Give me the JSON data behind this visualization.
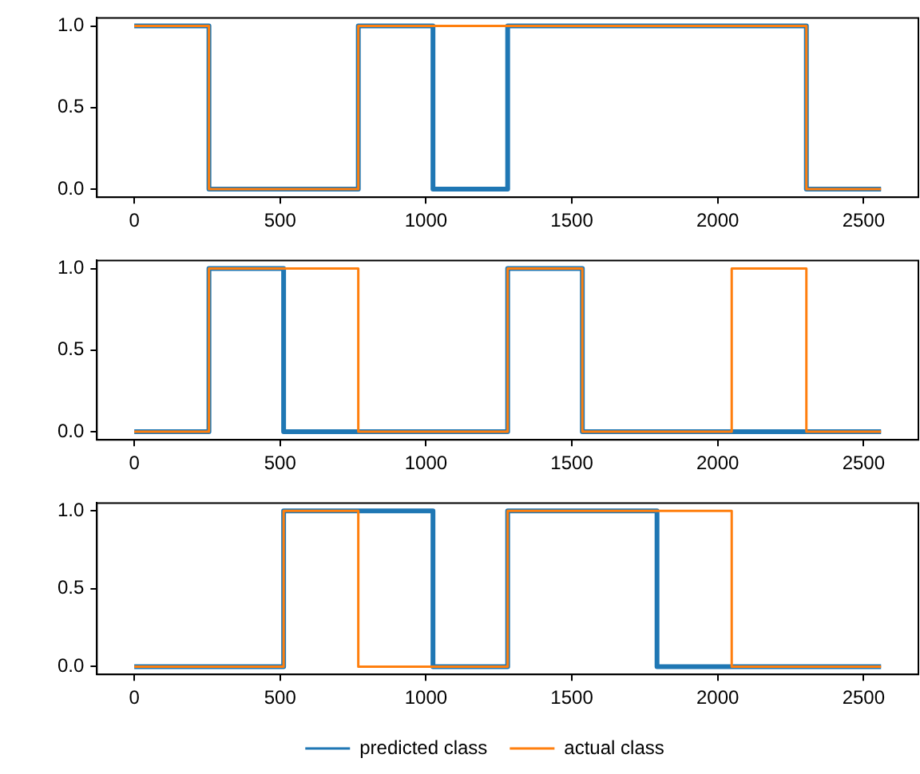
{
  "chart_data": [
    {
      "type": "step",
      "xlim": [
        -128,
        2688
      ],
      "ylim": [
        -0.05,
        1.05
      ],
      "xticks": [
        0,
        500,
        1000,
        1500,
        2000,
        2500
      ],
      "yticks": [
        {
          "value": 0,
          "label": "0.0"
        },
        {
          "value": 0.5,
          "label": "0.5"
        },
        {
          "value": 1,
          "label": "1.0"
        }
      ],
      "grid": false,
      "series": [
        {
          "color": "#1f77b4",
          "x": [
            0,
            256,
            768,
            1024,
            1280,
            2304,
            2560
          ],
          "values": [
            1,
            0,
            1,
            0,
            1,
            0,
            0
          ]
        },
        {
          "color": "#ff7f0e",
          "x": [
            0,
            256,
            768,
            2304,
            2560
          ],
          "values": [
            1,
            0,
            1,
            0,
            0
          ]
        }
      ]
    },
    {
      "type": "step",
      "xlim": [
        -128,
        2688
      ],
      "ylim": [
        -0.05,
        1.05
      ],
      "xticks": [
        0,
        500,
        1000,
        1500,
        2000,
        2500
      ],
      "yticks": [
        {
          "value": 0,
          "label": "0.0"
        },
        {
          "value": 0.5,
          "label": "0.5"
        },
        {
          "value": 1,
          "label": "1.0"
        }
      ],
      "grid": false,
      "series": [
        {
          "color": "#1f77b4",
          "x": [
            0,
            256,
            512,
            1280,
            1536,
            2560
          ],
          "values": [
            0,
            1,
            0,
            1,
            0,
            0
          ]
        },
        {
          "color": "#ff7f0e",
          "x": [
            0,
            256,
            768,
            1280,
            1536,
            2048,
            2304,
            2560
          ],
          "values": [
            0,
            1,
            0,
            1,
            0,
            1,
            0,
            0
          ]
        }
      ]
    },
    {
      "type": "step",
      "xlim": [
        -128,
        2688
      ],
      "ylim": [
        -0.05,
        1.05
      ],
      "xticks": [
        0,
        500,
        1000,
        1500,
        2000,
        2500
      ],
      "yticks": [
        {
          "value": 0,
          "label": "0.0"
        },
        {
          "value": 0.5,
          "label": "0.5"
        },
        {
          "value": 1,
          "label": "1.0"
        }
      ],
      "grid": false,
      "legend": "bottom",
      "series": [
        {
          "name": "predicted class",
          "color": "#1f77b4",
          "x": [
            0,
            512,
            1024,
            1280,
            1792,
            2560
          ],
          "values": [
            0,
            1,
            0,
            1,
            0,
            0
          ]
        },
        {
          "name": "actual class",
          "color": "#ff7f0e",
          "x": [
            0,
            512,
            768,
            1280,
            2048,
            2560
          ],
          "values": [
            0,
            1,
            0,
            1,
            0,
            0
          ]
        }
      ]
    }
  ]
}
